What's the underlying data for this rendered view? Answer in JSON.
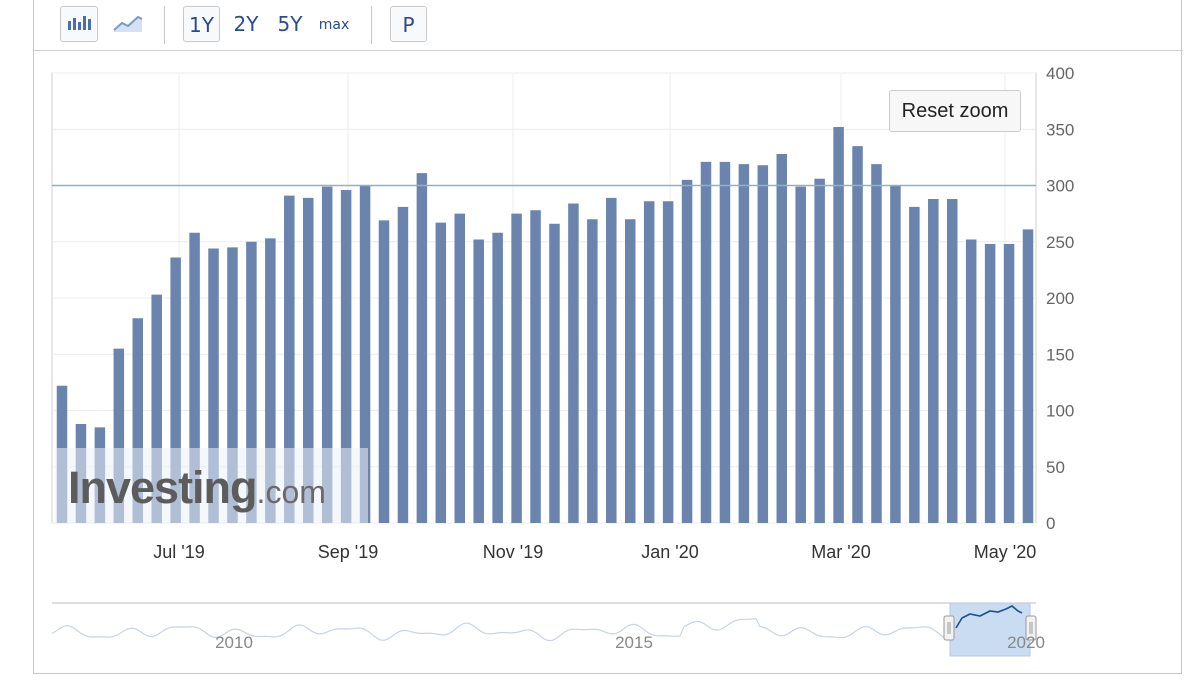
{
  "toolbar": {
    "bar_chart_icon": "bar-chart-icon",
    "line_chart_icon": "line-chart-icon",
    "ranges": [
      "1Y",
      "2Y",
      "5Y",
      "max"
    ],
    "print_label": "P"
  },
  "reset_zoom_label": "Reset zoom",
  "watermark": {
    "brand": "Investing",
    "suffix": ".com"
  },
  "colors": {
    "bar": "#6a84ad",
    "reference_line": "#8fb1c8",
    "navigator_line": "#1e4f8f",
    "navigator_fill": "#c9dcf2"
  },
  "chart_data": {
    "type": "bar",
    "title": "",
    "xlabel": "",
    "ylabel": "",
    "ylim": [
      0,
      400
    ],
    "yticks": [
      0,
      50,
      100,
      150,
      200,
      250,
      300,
      350,
      400
    ],
    "reference_line": 300,
    "grid": true,
    "y_axis_position": "right",
    "x_tick_labels": [
      "Jul '19",
      "Sep '19",
      "Nov '19",
      "Jan '20",
      "Mar '20",
      "May '20"
    ],
    "values": [
      122,
      88,
      85,
      155,
      182,
      203,
      236,
      258,
      244,
      245,
      250,
      253,
      291,
      289,
      299,
      296,
      300,
      269,
      281,
      311,
      267,
      275,
      252,
      258,
      275,
      278,
      266,
      284,
      270,
      289,
      270,
      286,
      286,
      305,
      321,
      321,
      319,
      318,
      328,
      299,
      306,
      352,
      335,
      319,
      300,
      281,
      288,
      288,
      252,
      248,
      248,
      261
    ]
  },
  "navigator": {
    "year_labels": [
      "2010",
      "2015",
      "2020"
    ]
  }
}
